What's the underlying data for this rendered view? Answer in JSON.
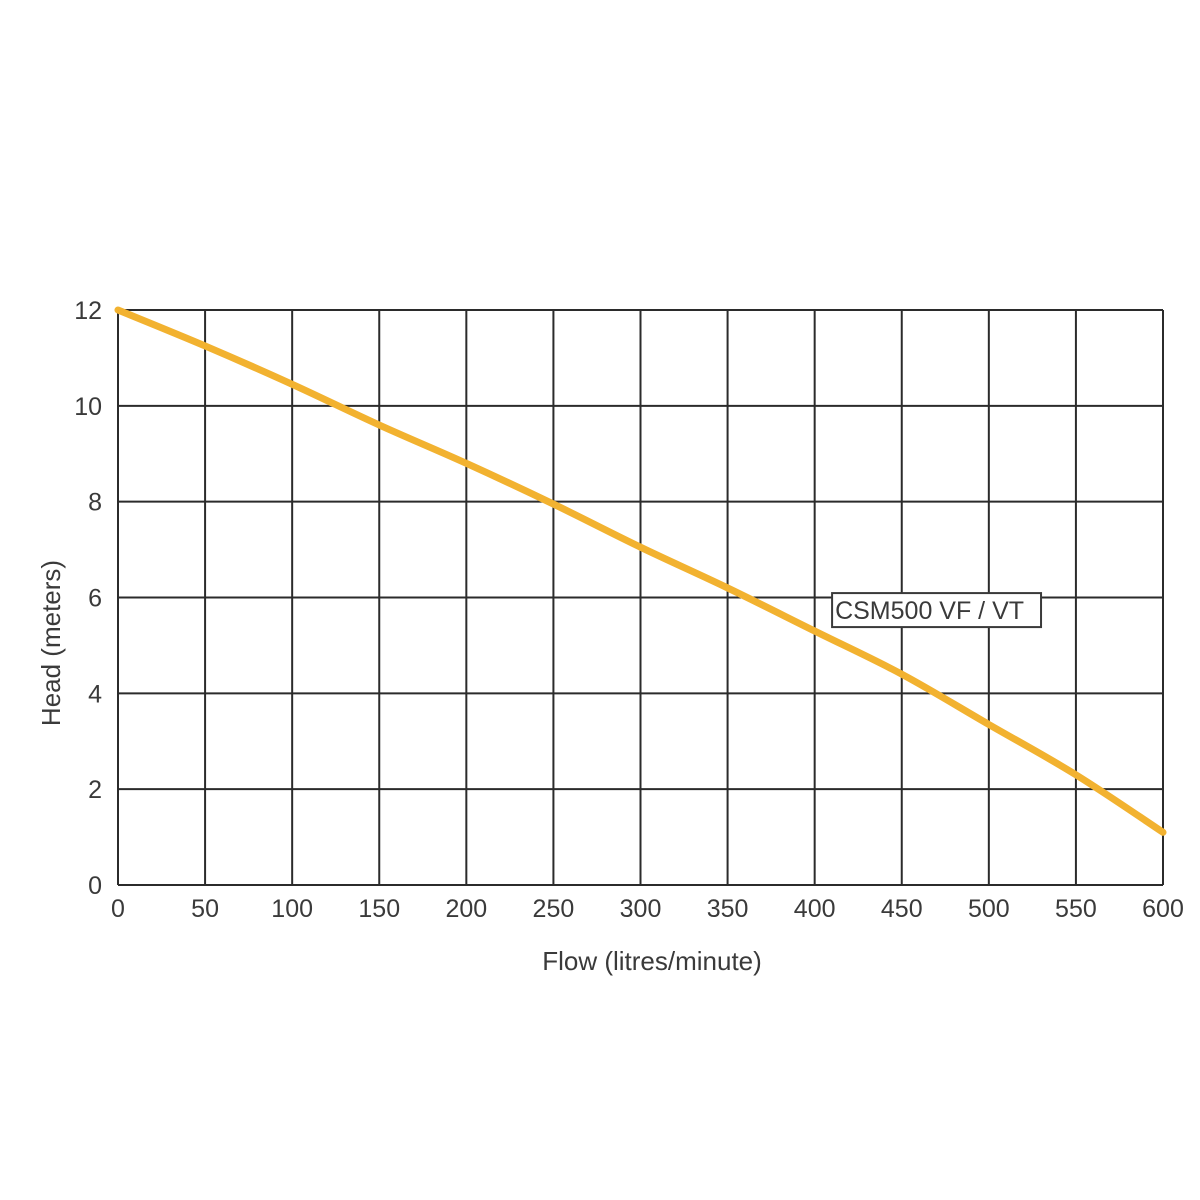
{
  "chart_data": {
    "type": "line",
    "title": "",
    "xlabel": "Flow (litres/minute)",
    "ylabel": "Head (meters)",
    "xlim": [
      0,
      600
    ],
    "ylim": [
      0,
      12
    ],
    "x_ticks": [
      "0",
      "50",
      "100",
      "150",
      "200",
      "250",
      "300",
      "350",
      "400",
      "450",
      "500",
      "550",
      "600"
    ],
    "y_ticks": [
      "0",
      "2",
      "4",
      "6",
      "8",
      "10",
      "12"
    ],
    "grid": true,
    "series": [
      {
        "name": "CSM500 VF / VT",
        "color": "#f2b230",
        "x": [
          0,
          50,
          100,
          150,
          200,
          250,
          300,
          350,
          400,
          450,
          500,
          550,
          600
        ],
        "y": [
          12.0,
          11.25,
          10.45,
          9.6,
          8.8,
          7.95,
          7.05,
          6.2,
          5.3,
          4.4,
          3.35,
          2.3,
          1.1
        ]
      }
    ],
    "annotations": [
      {
        "text": "CSM500 VF / VT",
        "x": 410,
        "y": 5.8
      }
    ]
  }
}
